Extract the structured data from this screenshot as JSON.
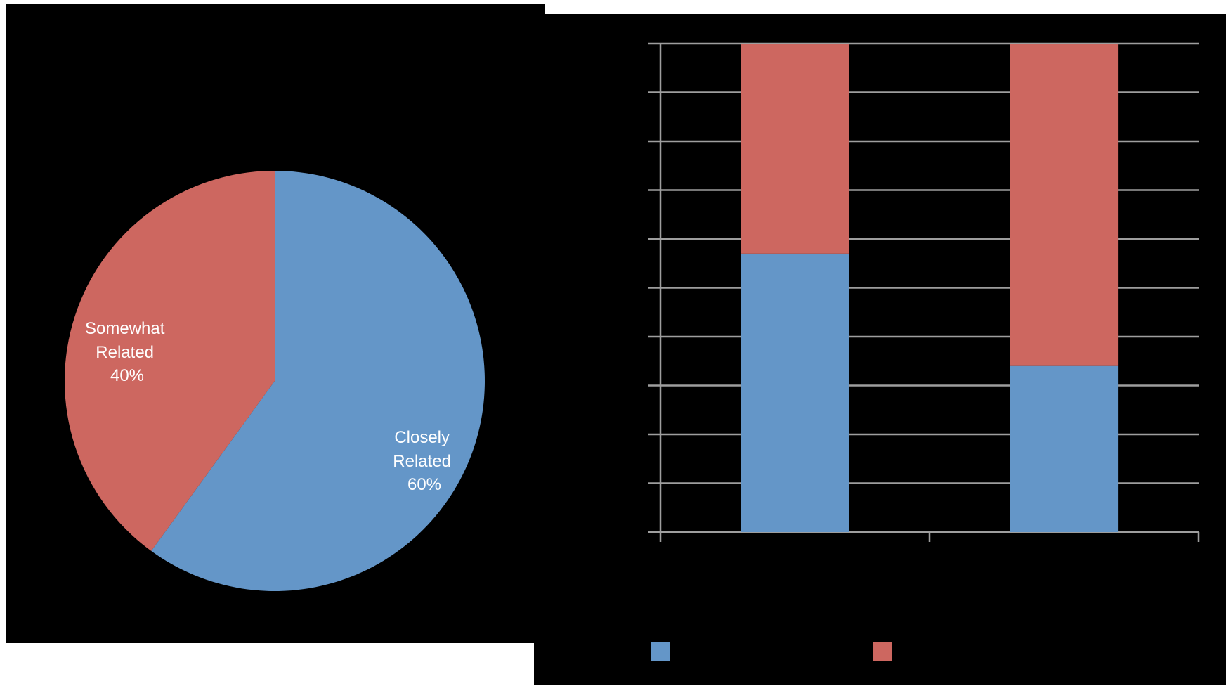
{
  "colors": {
    "background": "#000000",
    "blue": "#6496c8",
    "red": "#cd6760",
    "grid": "#9e9e9e",
    "label_text": "#ffffff"
  },
  "chart_data": [
    {
      "type": "pie",
      "title": "",
      "start_angle_deg": 0,
      "direction": "clockwise",
      "slices": [
        {
          "label": "Closely Related",
          "pct_label": "60%",
          "value": 60,
          "color": "#6496c8"
        },
        {
          "label": "Somewhat Related",
          "pct_label": "40%",
          "value": 40,
          "color": "#cd6760"
        }
      ]
    },
    {
      "type": "bar",
      "stacked": true,
      "title": "",
      "xlabel": "",
      "ylabel": "",
      "categories": [
        "",
        ""
      ],
      "ylim": [
        0,
        1
      ],
      "y_gridlines": 10,
      "grid": true,
      "legend_position": "bottom",
      "series": [
        {
          "name": "",
          "color": "#6496c8",
          "values": [
            0.57,
            0.34
          ]
        },
        {
          "name": "",
          "color": "#cd6760",
          "values": [
            0.43,
            0.66
          ]
        }
      ]
    }
  ]
}
